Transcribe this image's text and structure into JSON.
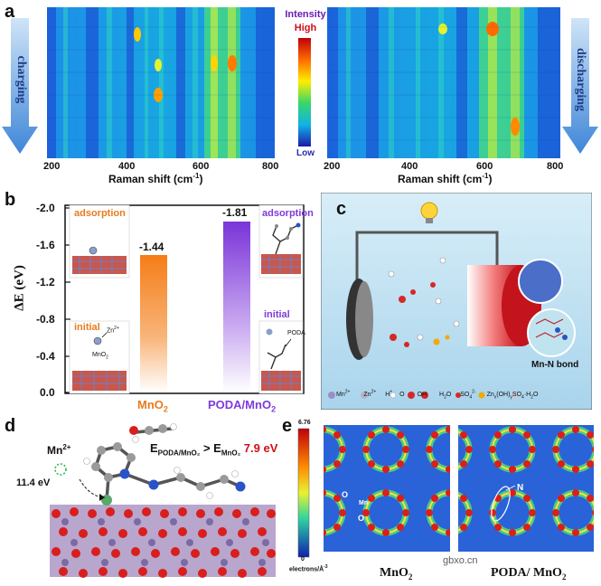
{
  "panel_a": {
    "label": "a",
    "left_arrow_label": "charging",
    "right_arrow_label": "discharging",
    "colorbar": {
      "title": "Intensity",
      "high": "High",
      "low": "Low"
    },
    "x_ticks": [
      "200",
      "400",
      "600",
      "800"
    ],
    "x_label": "Raman shift (cm",
    "x_label_sup": "-1",
    "x_label_end": ")"
  },
  "panel_b": {
    "label": "b",
    "y_label": "ΔE (eV)",
    "y_ticks": [
      "-2.0",
      "-1.6",
      "-1.2",
      "-0.8",
      "-0.4",
      "0.0"
    ],
    "left_bar": {
      "value_label": "-1.44",
      "value": -1.44,
      "color": "#f5801e",
      "name": "MnO",
      "name_sub": "2"
    },
    "right_bar": {
      "value_label": "-1.81",
      "value": -1.81,
      "color": "#7d3bdb",
      "name": "PODA/MnO",
      "name_sub": "2"
    },
    "left_adsorption": "adsorption",
    "left_initial": "initial",
    "left_zn_label": "Zn",
    "left_zn_sup": "2+",
    "left_mno2_label": "MnO",
    "left_mno2_sub": "2",
    "right_adsorption": "adsorption",
    "right_initial": "initial",
    "right_poda_label": "PODA"
  },
  "panel_c": {
    "label": "c",
    "bond_label": "Mn-N bond",
    "legend": {
      "mn": "Mn",
      "mn_sup": "2+",
      "zn": "Zn",
      "zn_sup": "2+",
      "h": "H",
      "h_sup": "+",
      "o": "O",
      "oh": "OH",
      "h2o": "H",
      "h2o_sub": "2",
      "h2o_end": "O",
      "so4": "SO",
      "so4_sub": "4",
      "so4_sup": "2-",
      "zhs": "Zn",
      "zhs_sub1": "x",
      "zhs_mid": "(OH)",
      "zhs_sub2": "y",
      "zhs_mid2": "SO",
      "zhs_sub3": "4",
      "zhs_end": "·H",
      "zhs_sub4": "2",
      "zhs_end2": "O"
    }
  },
  "panel_d": {
    "label": "d",
    "mn_label": "Mn",
    "mn_sup": "2+",
    "energy_label": "11.4 eV",
    "eq_e1": "E",
    "eq_e1_sub": "PODA/MnO₂",
    "eq_gt": " > E",
    "eq_e2_sub": "MnO₂",
    "eq_value": " 7.9 eV"
  },
  "panel_e": {
    "label": "e",
    "cb_max": "6.76",
    "cb_min": "0",
    "cb_unit": "electrons/Å",
    "cb_unit_sup": "-3",
    "left_title": "MnO",
    "left_title_sub": "2",
    "right_title": "PODA/ MnO",
    "right_title_sub": "2",
    "o_label": "O",
    "mn_label": "Mn",
    "n_label": "N",
    "watermark": "gbxo.cn"
  }
}
